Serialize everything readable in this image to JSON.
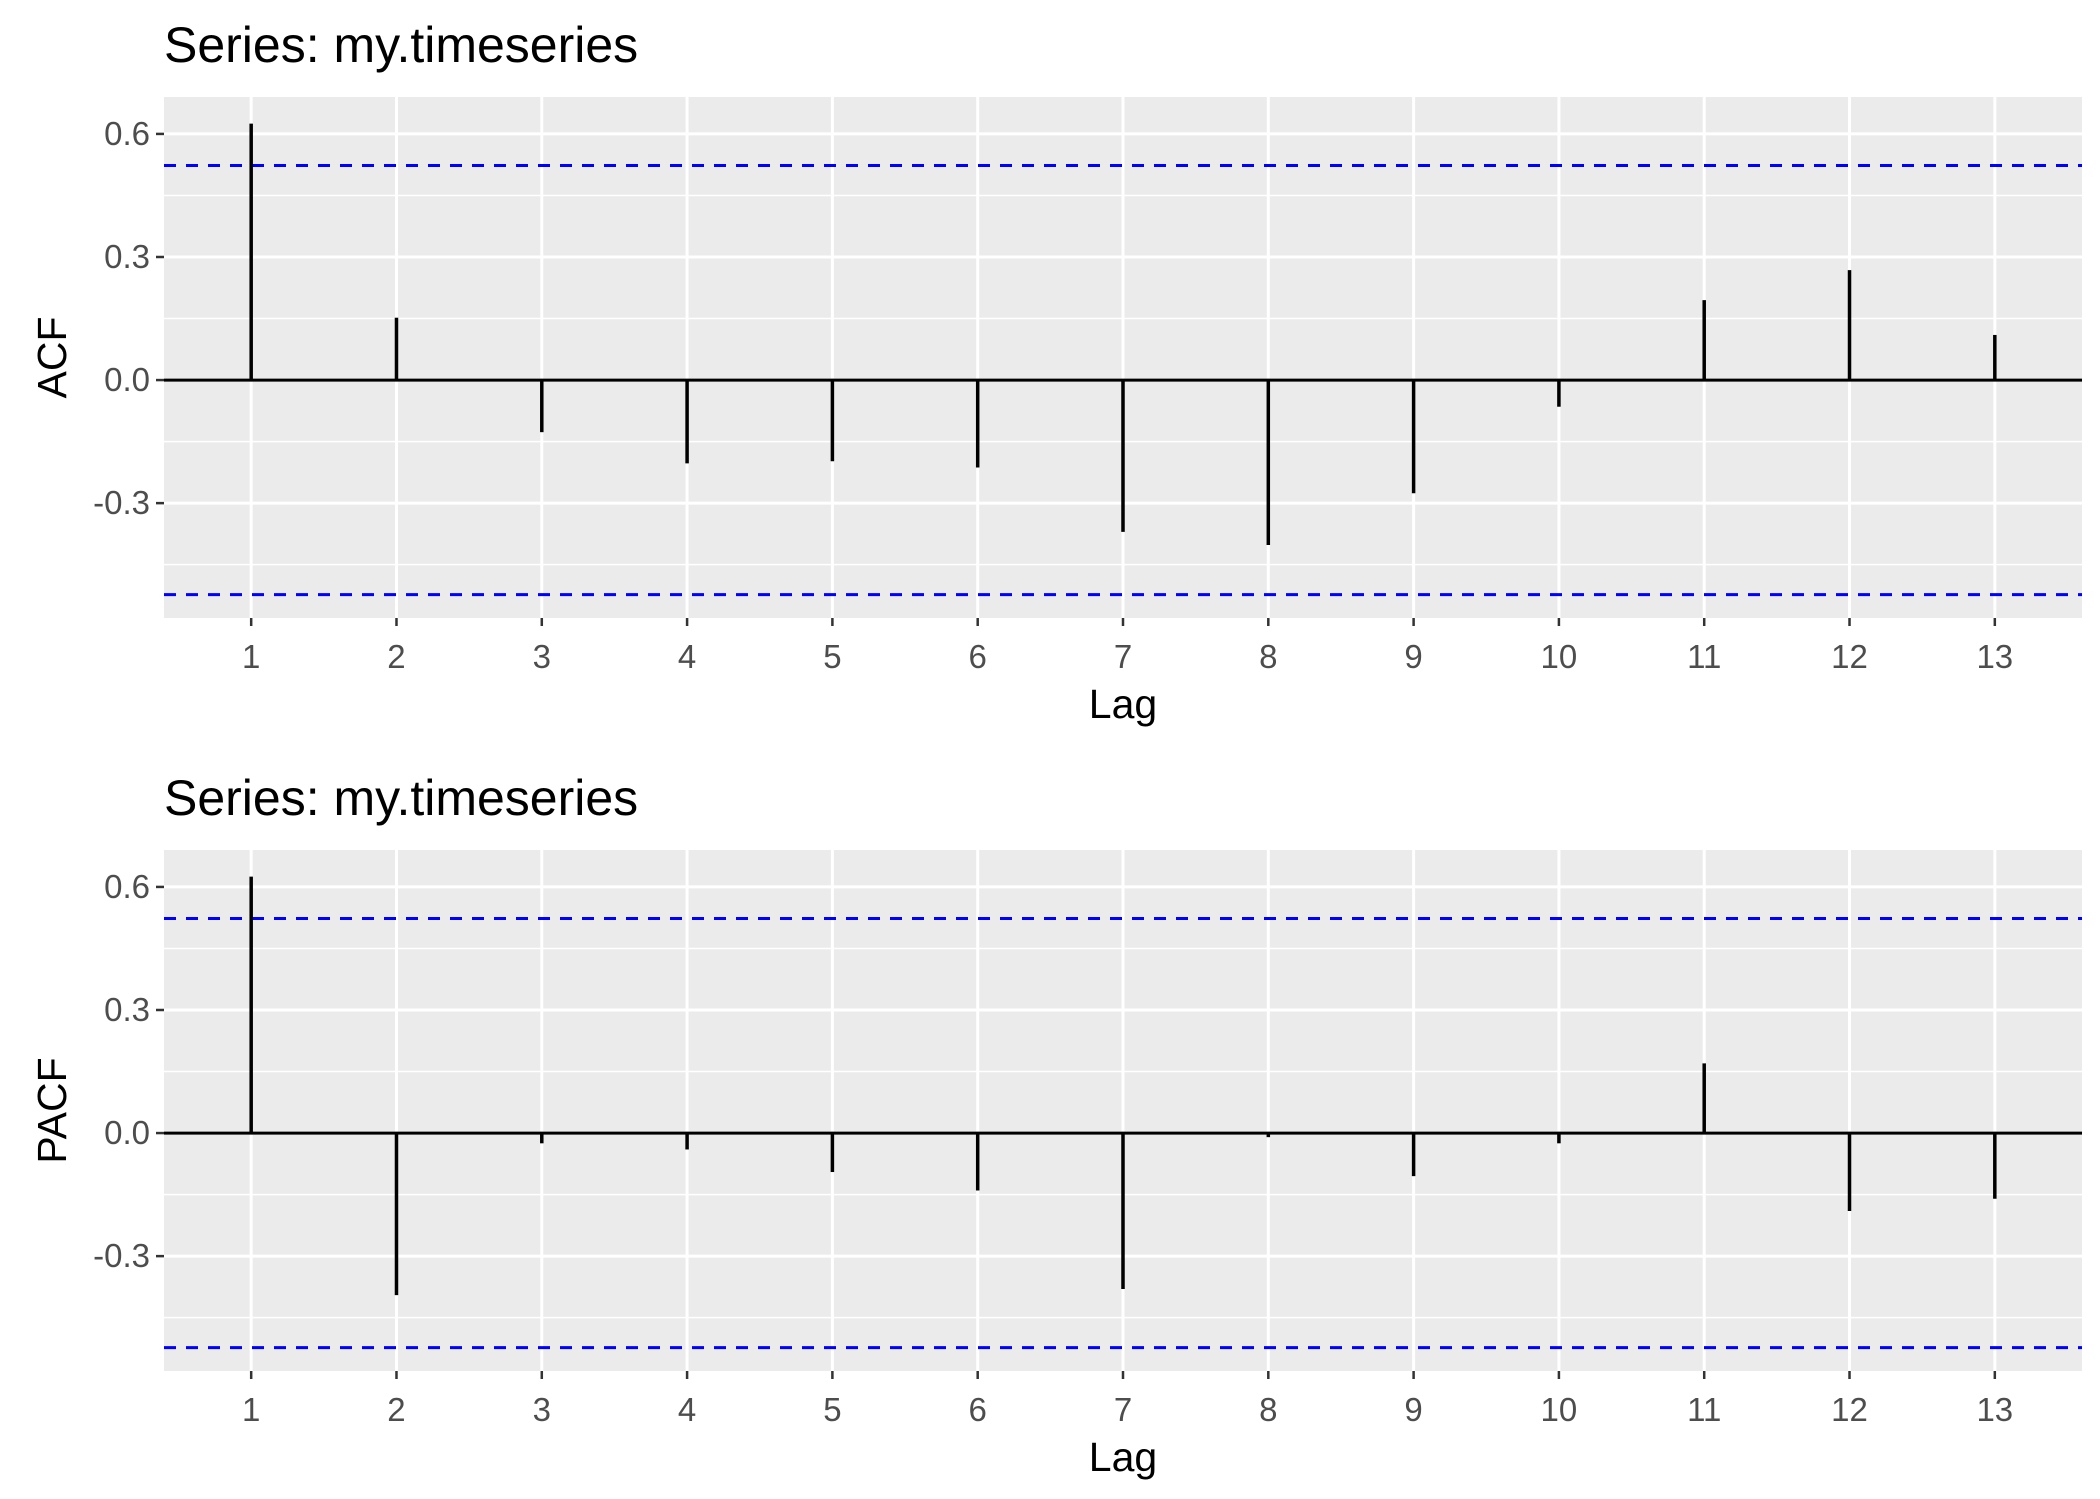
{
  "chart_data": [
    {
      "type": "bar",
      "title": "Series: my.timeseries",
      "xlabel": "Lag",
      "ylabel": "ACF",
      "x": [
        1,
        2,
        3,
        4,
        5,
        6,
        7,
        8,
        9,
        10,
        11,
        12,
        13
      ],
      "x_tick_labels": [
        "1",
        "2",
        "3",
        "4",
        "5",
        "6",
        "7",
        "8",
        "9",
        "10",
        "11",
        "12",
        "13"
      ],
      "values": [
        0.625,
        0.152,
        -0.127,
        -0.203,
        -0.198,
        -0.213,
        -0.37,
        -0.402,
        -0.276,
        -0.065,
        0.195,
        0.268,
        0.11
      ],
      "y_ticks": [
        -0.3,
        0.0,
        0.3,
        0.6
      ],
      "y_tick_labels": [
        "-0.3",
        "0.0",
        "0.3",
        "0.6"
      ],
      "ylim": [
        -0.58,
        0.69
      ],
      "xlim": [
        0.4,
        13.6
      ],
      "confidence_bounds": [
        -0.523,
        0.523
      ],
      "grid": true,
      "colors": {
        "bars": "#000000",
        "bounds": "#0000ff",
        "panel": "#ebebeb",
        "grid": "#ffffff"
      }
    },
    {
      "type": "bar",
      "title": "Series: my.timeseries",
      "xlabel": "Lag",
      "ylabel": "PACF",
      "x": [
        1,
        2,
        3,
        4,
        5,
        6,
        7,
        8,
        9,
        10,
        11,
        12,
        13
      ],
      "x_tick_labels": [
        "1",
        "2",
        "3",
        "4",
        "5",
        "6",
        "7",
        "8",
        "9",
        "10",
        "11",
        "12",
        "13"
      ],
      "values": [
        0.625,
        -0.395,
        -0.025,
        -0.04,
        -0.095,
        -0.14,
        -0.38,
        -0.01,
        -0.105,
        -0.025,
        0.17,
        -0.19,
        -0.16
      ],
      "y_ticks": [
        -0.3,
        0.0,
        0.3,
        0.6
      ],
      "y_tick_labels": [
        "-0.3",
        "0.0",
        "0.3",
        "0.6"
      ],
      "ylim": [
        -0.58,
        0.69
      ],
      "xlim": [
        0.4,
        13.6
      ],
      "confidence_bounds": [
        -0.523,
        0.523
      ],
      "grid": true,
      "colors": {
        "bars": "#000000",
        "bounds": "#0000ff",
        "panel": "#ebebeb",
        "grid": "#ffffff"
      }
    }
  ]
}
